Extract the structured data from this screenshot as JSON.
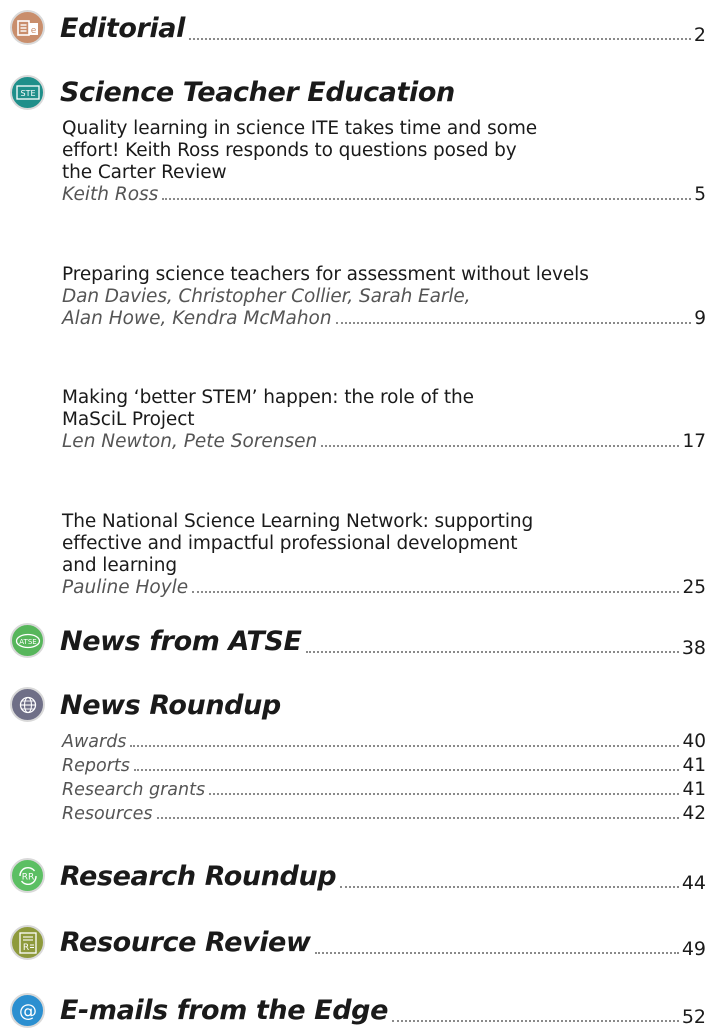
{
  "sections": {
    "editorial": {
      "title": "Editorial",
      "page": "2",
      "icon": "editorial-icon"
    },
    "ste": {
      "title": "Science Teacher Education",
      "icon": "ste-icon",
      "icon_text": "STE",
      "articles": [
        {
          "title_lines": [
            "Quality learning in science ITE takes time and some",
            "effort! Keith Ross responds to questions posed by",
            "the Carter Review"
          ],
          "author_lines": [
            "Keith Ross"
          ],
          "page": "5"
        },
        {
          "title_lines": [
            "Preparing science teachers for assessment without levels"
          ],
          "author_lines": [
            "Dan Davies, Christopher Collier, Sarah Earle,",
            "Alan Howe, Kendra McMahon"
          ],
          "page": "9"
        },
        {
          "title_lines": [
            "Making ‘better STEM’ happen: the role of the",
            "MaSciL Project"
          ],
          "author_lines": [
            "Len Newton, Pete Sorensen"
          ],
          "page": "17"
        },
        {
          "title_lines": [
            "The National Science Learning Network: supporting",
            "effective and impactful professional development",
            "and learning"
          ],
          "author_lines": [
            "Pauline Hoyle"
          ],
          "page": "25"
        }
      ]
    },
    "atse": {
      "title": "News from ATSE",
      "page": "38",
      "icon": "atse-icon",
      "icon_text": "ATSE"
    },
    "news": {
      "title": "News Roundup",
      "icon": "globe-icon",
      "items": [
        {
          "label": "Awards",
          "page": "40"
        },
        {
          "label": "Reports",
          "page": "41"
        },
        {
          "label": "Research grants",
          "page": "41"
        },
        {
          "label": "Resources",
          "page": "42"
        }
      ]
    },
    "research": {
      "title": "Research Roundup",
      "page": "44",
      "icon": "research-roundup-icon",
      "icon_text": "RR"
    },
    "review": {
      "title": "Resource Review",
      "page": "49",
      "icon": "resource-review-icon",
      "icon_text": "R"
    },
    "emails": {
      "title": "E-mails from the Edge",
      "page": "52",
      "icon": "at-sign-icon",
      "icon_text": "@"
    }
  },
  "colors": {
    "editorial": "#c98e6c",
    "ste": "#1f8f8a",
    "atse": "#57b65b",
    "news": "#6f6f87",
    "research": "#5cbf63",
    "review": "#8e9a3c",
    "emails": "#2b8fd0"
  }
}
